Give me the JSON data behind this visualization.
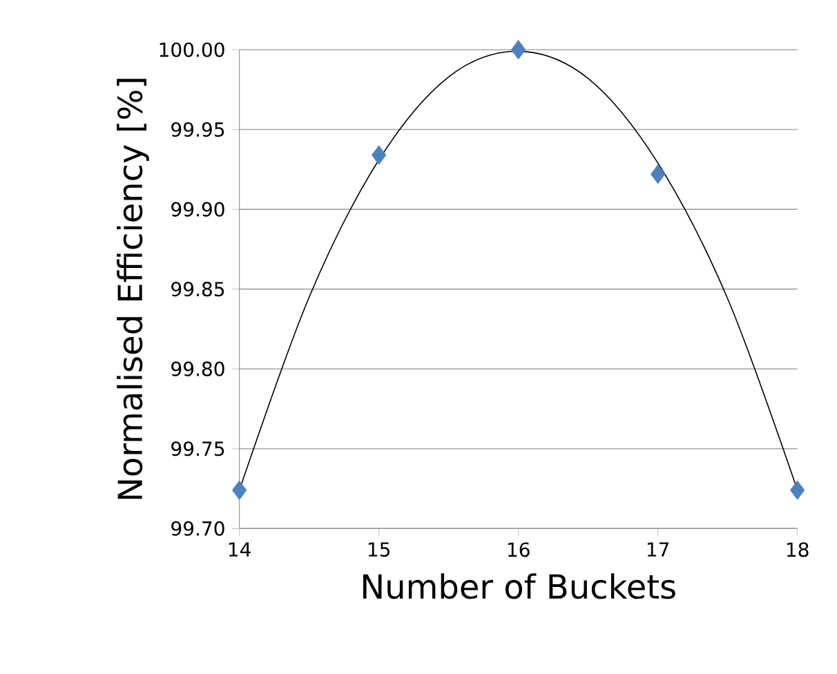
{
  "chart_data": {
    "type": "scatter",
    "xlabel": "Number of Buckets",
    "ylabel": "Normalised Efficiency  [%]",
    "x": [
      14,
      15,
      16,
      17,
      18
    ],
    "series": [
      {
        "color": "#4f81bd",
        "marker": "diamond",
        "values": [
          99.724,
          99.934,
          100.0,
          99.922,
          99.724
        ]
      },
      {
        "type": "line",
        "color": "#000000",
        "marker": "none",
        "line_style": "solid",
        "x": [
          14,
          14.5,
          15,
          15.5,
          16,
          16.5,
          17,
          17.5,
          18
        ],
        "values": [
          99.724,
          99.845,
          99.931,
          99.983,
          99.999,
          99.982,
          99.929,
          99.844,
          99.724
        ]
      }
    ],
    "xlim": [
      14,
      18
    ],
    "ylim": [
      99.7,
      100.0
    ],
    "xticks": [
      14,
      15,
      16,
      17,
      18
    ],
    "yticks": [
      {
        "value": 99.7,
        "label": "99.70"
      },
      {
        "value": 99.75,
        "label": "99.75"
      },
      {
        "value": 99.8,
        "label": "99.80"
      },
      {
        "value": 99.85,
        "label": "99.85"
      },
      {
        "value": 99.9,
        "label": "99.90"
      },
      {
        "value": 99.95,
        "label": "99.95"
      },
      {
        "value": 100.0,
        "label": "100.00"
      }
    ],
    "grid": "y"
  }
}
